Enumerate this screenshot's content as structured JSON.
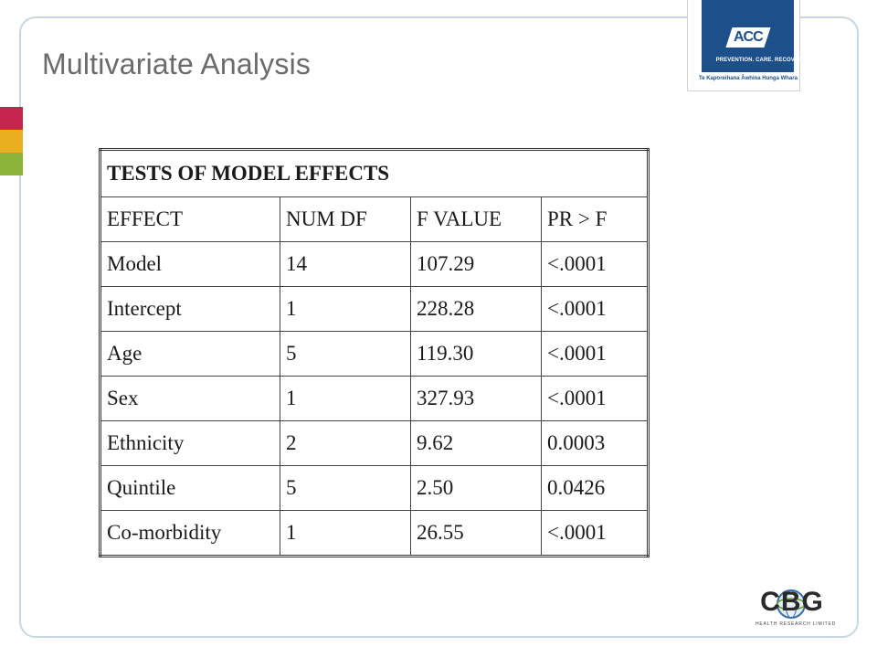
{
  "slide": {
    "title": "Multivariate Analysis",
    "accent_colors": [
      "#c4264f",
      "#e8b020",
      "#8cb33a"
    ]
  },
  "acc_logo": {
    "mark": "ACC",
    "tagline": "PREVENTION. CARE. RECOVERY.",
    "maori_text": "Te Kaporeihana Āwhina Hunga Whara",
    "color": "#1d4f8a"
  },
  "table": {
    "caption": "TESTS OF MODEL EFFECTS",
    "headers": [
      "EFFECT",
      "NUM DF",
      "F VALUE",
      "PR > F"
    ],
    "rows": [
      [
        "Model",
        "14",
        "107.29",
        "<.0001"
      ],
      [
        "Intercept",
        "1",
        "228.28",
        "<.0001"
      ],
      [
        "Age",
        "5",
        "119.30",
        "<.0001"
      ],
      [
        "Sex",
        "1",
        "327.93",
        "<.0001"
      ],
      [
        "Ethnicity",
        "2",
        "9.62",
        "0.0003"
      ],
      [
        "Quintile",
        "5",
        "2.50",
        "0.0426"
      ],
      [
        "Co-morbidity",
        "1",
        "26.55",
        "<.0001"
      ]
    ]
  },
  "cbg_logo": {
    "mark": "CBG",
    "subtitle": "HEALTH RESEARCH LIMITED"
  }
}
